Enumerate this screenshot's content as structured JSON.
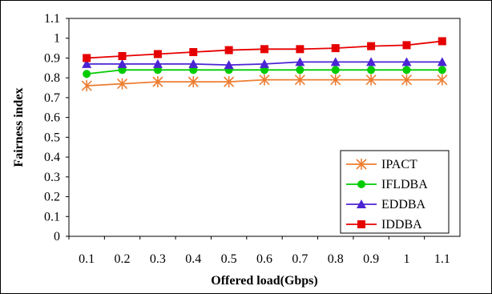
{
  "chart_data": {
    "type": "line",
    "title": "",
    "xlabel": "Offered load(Gbps)",
    "ylabel": "Fairness index",
    "categories": [
      "0.1",
      "0.2",
      "0.3",
      "0.4",
      "0.5",
      "0.6",
      "0.7",
      "0.8",
      "0.9",
      "1",
      "1.1"
    ],
    "yticks": [
      "0",
      "0.1",
      "0.2",
      "0.3",
      "0.4",
      "0.5",
      "0.6",
      "0.7",
      "0.8",
      "0.9",
      "1",
      "1.1"
    ],
    "ylim": [
      0,
      1.1
    ],
    "grid": false,
    "legend_position": "bottom-right",
    "series": [
      {
        "name": "IPACT",
        "color": "#ED7D31",
        "marker": "asterisk",
        "values": [
          0.76,
          0.77,
          0.78,
          0.78,
          0.78,
          0.79,
          0.79,
          0.79,
          0.79,
          0.79,
          0.79
        ]
      },
      {
        "name": "IFLDBA",
        "color": "#00CC00",
        "marker": "circle",
        "values": [
          0.82,
          0.84,
          0.84,
          0.84,
          0.84,
          0.84,
          0.84,
          0.84,
          0.84,
          0.84,
          0.84
        ]
      },
      {
        "name": "EDDBA",
        "color": "#4B24D4",
        "marker": "triangle",
        "values": [
          0.87,
          0.87,
          0.87,
          0.87,
          0.865,
          0.87,
          0.88,
          0.88,
          0.88,
          0.88,
          0.88
        ]
      },
      {
        "name": "IDDBA",
        "color": "#E60000",
        "marker": "square",
        "values": [
          0.9,
          0.91,
          0.92,
          0.93,
          0.94,
          0.945,
          0.945,
          0.95,
          0.96,
          0.965,
          0.985
        ]
      }
    ]
  }
}
